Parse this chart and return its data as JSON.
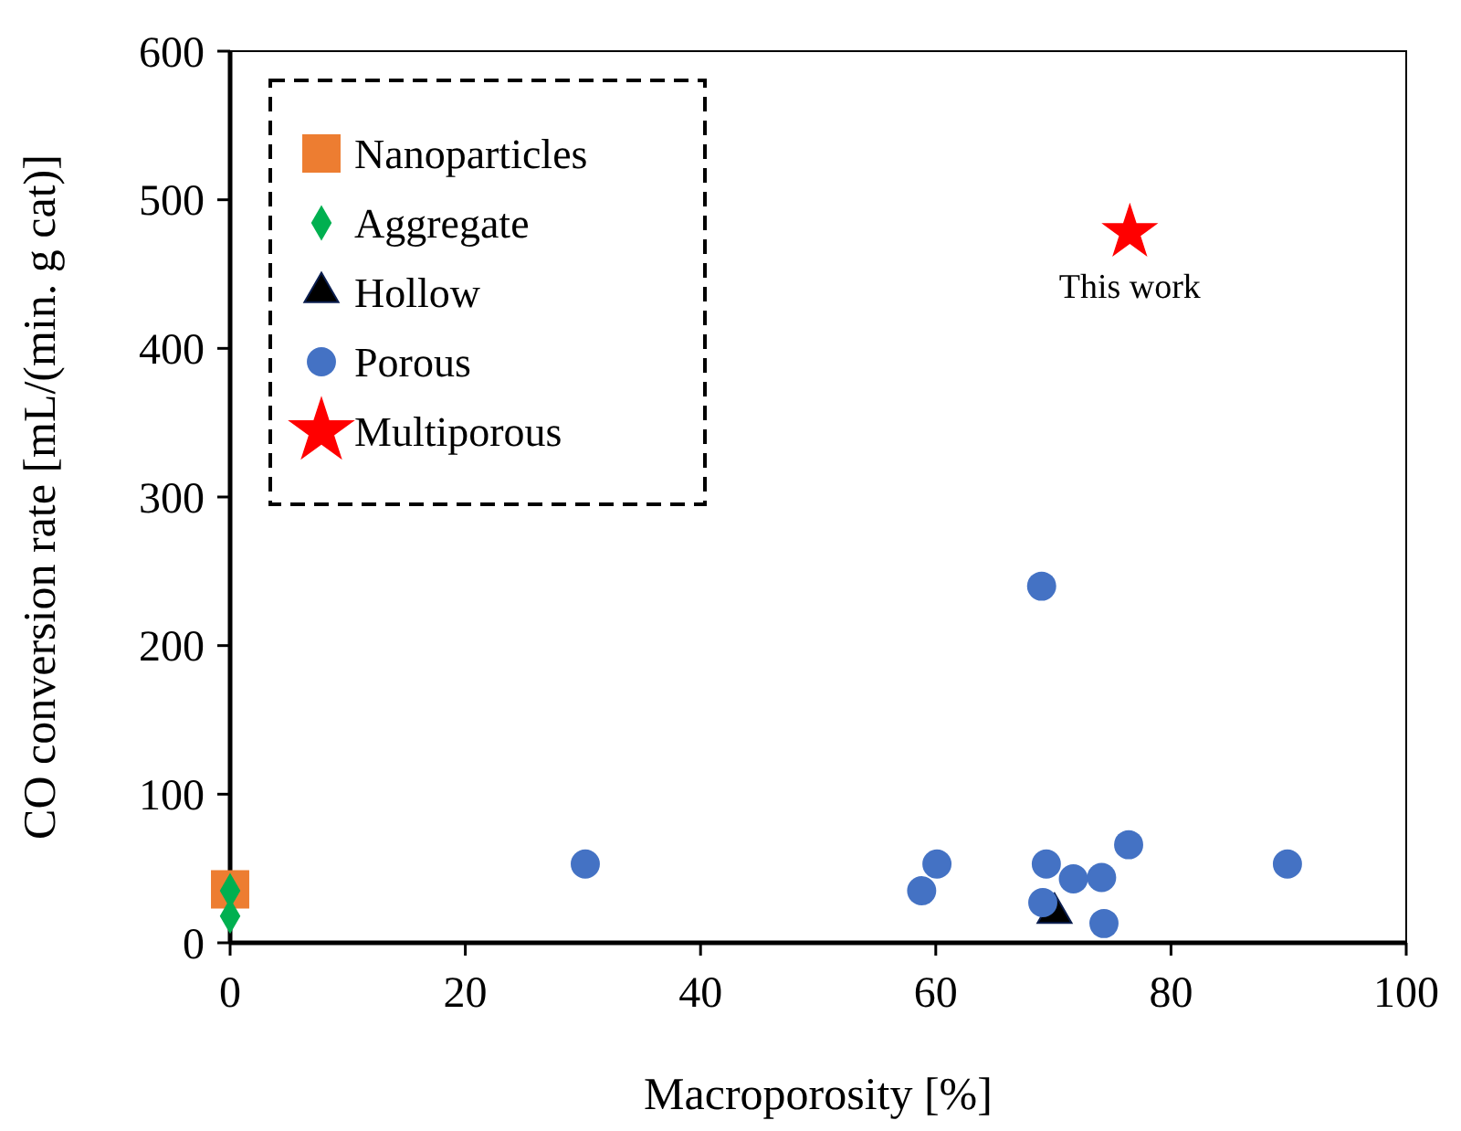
{
  "chart_data": {
    "type": "scatter",
    "xlabel": "Macroporosity [%]",
    "ylabel": "CO conversion rate [mL/(min. g cat)]",
    "xlim": [
      0,
      100
    ],
    "xticks": [
      0,
      20,
      40,
      60,
      80,
      100
    ],
    "ylim": [
      0,
      600
    ],
    "yticks": [
      0,
      100,
      200,
      300,
      400,
      500,
      600
    ],
    "grid": false,
    "legend": "top left",
    "series": [
      {
        "name": "Nanoparticles",
        "color": "#ed7d31",
        "marker": "square",
        "x": [
          0
        ],
        "values": [
          36
        ]
      },
      {
        "name": "Aggregate",
        "color": "#00b050",
        "marker": "diamond",
        "x": [
          0,
          0
        ],
        "values": [
          35,
          18
        ]
      },
      {
        "name": "Hollow",
        "color": "#000000",
        "marker": "triangle",
        "x": [
          70.1
        ],
        "values": [
          20
        ]
      },
      {
        "name": "Porous",
        "color": "#4472c4",
        "marker": "circle",
        "x": [
          30.2,
          60.1,
          58.8,
          69.4,
          71.7,
          74.1,
          76.4,
          89.9,
          69.1,
          74.3,
          69.0
        ],
        "values": [
          53,
          53,
          35,
          53,
          43,
          44,
          66,
          53,
          27,
          13,
          240
        ]
      },
      {
        "name": "Multiporous",
        "color": "#ff0000",
        "marker": "star",
        "x": [
          76.5
        ],
        "values": [
          478
        ]
      }
    ],
    "annotations": [
      {
        "text": "This work",
        "x": 76.5,
        "y": 478
      }
    ]
  }
}
